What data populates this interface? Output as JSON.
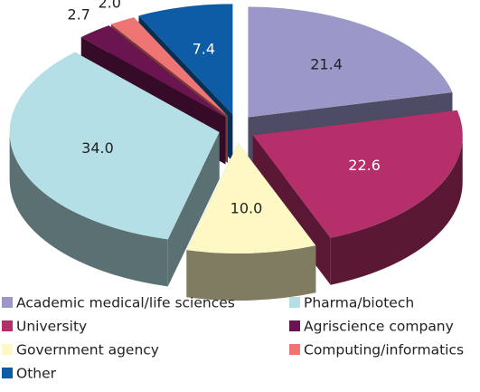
{
  "chart_data": {
    "type": "pie",
    "categories": [
      "Academic medical/life sciences",
      "University",
      "Government agency",
      "Other",
      "Pharma/biotech",
      "Agriscience company",
      "Computing/informatics"
    ],
    "values": [
      21.4,
      22.6,
      10.0,
      7.4,
      34.0,
      2.7,
      2.0
    ],
    "colors": [
      "#9b97c8",
      "#b5306a",
      "#fdf8c4",
      "#0e5ca6",
      "#b5dfe6",
      "#6b1550",
      "#ef7474"
    ],
    "pie_order": [
      0,
      1,
      2,
      4,
      5,
      6,
      3
    ]
  }
}
